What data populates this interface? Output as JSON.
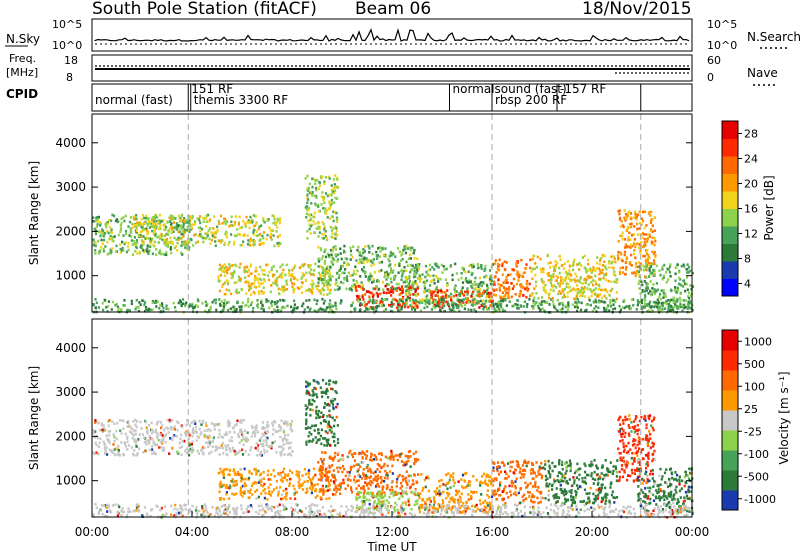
{
  "header": {
    "station": "South Pole Station (fitACF)",
    "beam": "Beam 06",
    "date": "18/Nov/2015"
  },
  "params_panel": {
    "left_label_1": "N.Sky",
    "left_ticks_1": [
      "10^5",
      "10^0"
    ],
    "right_ticks_1": [
      "10^5",
      "10^0"
    ],
    "right_label_1": "N.Search",
    "left_label_2_line1": "Freq.",
    "left_label_2_line2": "[MHz]",
    "left_ticks_2": [
      "18",
      "8"
    ],
    "right_ticks_2": [
      "60",
      "0"
    ],
    "right_label_2": "Nave",
    "cpid_label": "CPID"
  },
  "cpid_segments": [
    {
      "start_h": 0.0,
      "end_h": 3.85,
      "label": "normal (fast)"
    },
    {
      "start_h": 3.85,
      "end_h": 16.0,
      "label": "151 RF"
    },
    {
      "start_h": 3.95,
      "end_h": 16.0,
      "label": "themis 3300 RF"
    },
    {
      "start_h": 14.3,
      "end_h": 16.0,
      "label": "normalsound (fast)"
    },
    {
      "start_h": 16.0,
      "end_h": 21.95,
      "label": "rbsp 200 RF"
    },
    {
      "start_h": 18.6,
      "end_h": 21.95,
      "label": "-157 RF"
    }
  ],
  "chart_data": [
    {
      "type": "heatmap",
      "name": "power",
      "ylabel": "Slant Range [km]",
      "xlim_hours": [
        0,
        24
      ],
      "ylim": [
        180,
        4650
      ],
      "yticks": [
        1000,
        2000,
        3000,
        4000
      ],
      "colorbar": {
        "label": "Power [dB]",
        "ticks": [
          "28",
          "24",
          "20",
          "16",
          "12",
          "8",
          "4"
        ],
        "range": [
          0,
          30
        ],
        "colors": [
          "#0000ff",
          "#1a3bb0",
          "#2b7a3a",
          "#47a35a",
          "#8ed14b",
          "#f2d21a",
          "#ff9900",
          "#ff6a00",
          "#ff2a00",
          "#e60000"
        ]
      },
      "cpid_change_lines_h": [
        3.85,
        16.0,
        21.95
      ],
      "echo_regions": [
        {
          "t": [
            0.0,
            4.0
          ],
          "r": [
            1500,
            2400
          ],
          "value": 12
        },
        {
          "t": [
            1.5,
            7.5
          ],
          "r": [
            1700,
            2400
          ],
          "value": 15
        },
        {
          "t": [
            5.0,
            9.5
          ],
          "r": [
            600,
            1300
          ],
          "value": 16
        },
        {
          "t": [
            8.5,
            9.8
          ],
          "r": [
            1800,
            3300
          ],
          "value": 14
        },
        {
          "t": [
            9.0,
            13.0
          ],
          "r": [
            700,
            1700
          ],
          "value": 12
        },
        {
          "t": [
            10.5,
            13.0
          ],
          "r": [
            300,
            800
          ],
          "value": 26
        },
        {
          "t": [
            12.5,
            16.0
          ],
          "r": [
            400,
            1300
          ],
          "value": 12
        },
        {
          "t": [
            13.5,
            16.0
          ],
          "r": [
            300,
            700
          ],
          "value": 25
        },
        {
          "t": [
            16.0,
            17.5
          ],
          "r": [
            500,
            1400
          ],
          "value": 22
        },
        {
          "t": [
            17.5,
            21.0
          ],
          "r": [
            500,
            1500
          ],
          "value": 16
        },
        {
          "t": [
            21.0,
            22.5
          ],
          "r": [
            1000,
            2500
          ],
          "value": 20
        },
        {
          "t": [
            21.8,
            24.0
          ],
          "r": [
            300,
            1300
          ],
          "value": 11
        },
        {
          "t": [
            0.0,
            24.0
          ],
          "r": [
            200,
            500
          ],
          "value": 10
        }
      ]
    },
    {
      "type": "heatmap",
      "name": "velocity",
      "ylabel": "Slant Range [km]",
      "xlabel": "Time UT",
      "xticks": [
        "00:00",
        "04:00",
        "08:00",
        "12:00",
        "16:00",
        "20:00",
        "00:00"
      ],
      "xlim_hours": [
        0,
        24
      ],
      "ylim": [
        180,
        4650
      ],
      "yticks": [
        1000,
        2000,
        3000,
        4000
      ],
      "colorbar": {
        "label": "Velocity [m s⁻¹]",
        "ticks": [
          "1000",
          "500",
          "100",
          "25",
          "-25",
          "-100",
          "-500",
          "-1000"
        ],
        "colors": [
          "#1a3bb0",
          "#2b7a3a",
          "#47a35a",
          "#8ed14b",
          "#c8c8c8",
          "#ff9900",
          "#ff6a00",
          "#ff2a00",
          "#e60000"
        ]
      },
      "cpid_change_lines_h": [
        3.85,
        16.0,
        21.95
      ],
      "echo_regions": [
        {
          "t": [
            0.0,
            8.0
          ],
          "r": [
            1600,
            2400
          ],
          "value": "#c8c8c8"
        },
        {
          "t": [
            5.0,
            9.5
          ],
          "r": [
            600,
            1300
          ],
          "value": "#ff9900"
        },
        {
          "t": [
            8.5,
            9.8
          ],
          "r": [
            1800,
            3300
          ],
          "value": "#2b7a3a"
        },
        {
          "t": [
            9.0,
            13.0
          ],
          "r": [
            700,
            1700
          ],
          "value": "#ff6a00"
        },
        {
          "t": [
            10.5,
            13.0
          ],
          "r": [
            300,
            800
          ],
          "value": "#8ed14b"
        },
        {
          "t": [
            13.0,
            16.0
          ],
          "r": [
            300,
            1200
          ],
          "value": "#ff9900"
        },
        {
          "t": [
            16.0,
            18.0
          ],
          "r": [
            500,
            1500
          ],
          "value": "#ff6a00"
        },
        {
          "t": [
            18.0,
            21.0
          ],
          "r": [
            500,
            1500
          ],
          "value": "#2b7a3a"
        },
        {
          "t": [
            21.0,
            22.5
          ],
          "r": [
            1000,
            2500
          ],
          "value": "#ff2a00"
        },
        {
          "t": [
            21.8,
            24.0
          ],
          "r": [
            300,
            1300
          ],
          "value": "#2b7a3a"
        },
        {
          "t": [
            0.0,
            24.0
          ],
          "r": [
            200,
            500
          ],
          "value": "#c8c8c8"
        }
      ]
    }
  ]
}
